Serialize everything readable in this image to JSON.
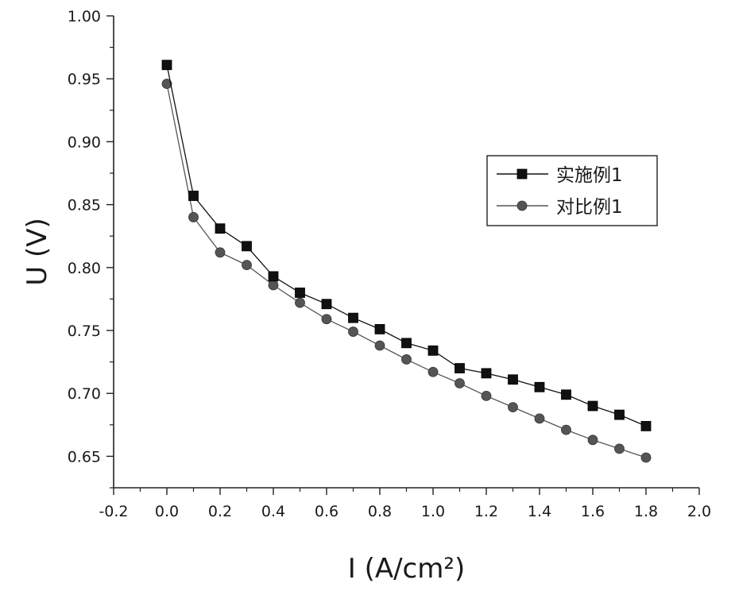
{
  "chart_data": {
    "type": "line",
    "xlabel": "I (A/cm²)",
    "ylabel": "U (V)",
    "xlim": [
      -0.2,
      2.0
    ],
    "ylim": [
      0.625,
      1.0
    ],
    "x_ticks": [
      "-0.2",
      "0.0",
      "0.2",
      "0.4",
      "0.6",
      "0.8",
      "1.0",
      "1.2",
      "1.4",
      "1.6",
      "1.8",
      "2.0"
    ],
    "y_ticks": [
      "0.65",
      "0.70",
      "0.75",
      "0.80",
      "0.85",
      "0.90",
      "0.95",
      "1.00"
    ],
    "grid": false,
    "legend_position": "right",
    "x": [
      0.0,
      0.1,
      0.2,
      0.3,
      0.4,
      0.5,
      0.6,
      0.7,
      0.8,
      0.9,
      1.0,
      1.1,
      1.2,
      1.3,
      1.4,
      1.5,
      1.6,
      1.7,
      1.8
    ],
    "series": [
      {
        "name": "实施例1",
        "marker": "square",
        "color": "#111111",
        "values": [
          0.961,
          0.857,
          0.831,
          0.817,
          0.793,
          0.78,
          0.771,
          0.76,
          0.751,
          0.74,
          0.734,
          0.72,
          0.716,
          0.711,
          0.705,
          0.699,
          0.69,
          0.683,
          0.674
        ]
      },
      {
        "name": "对比例1",
        "marker": "circle",
        "color": "#555555",
        "values": [
          0.946,
          0.84,
          0.812,
          0.802,
          0.786,
          0.772,
          0.759,
          0.749,
          0.738,
          0.727,
          0.717,
          0.708,
          0.698,
          0.689,
          0.68,
          0.671,
          0.663,
          0.656,
          0.649
        ]
      }
    ]
  }
}
